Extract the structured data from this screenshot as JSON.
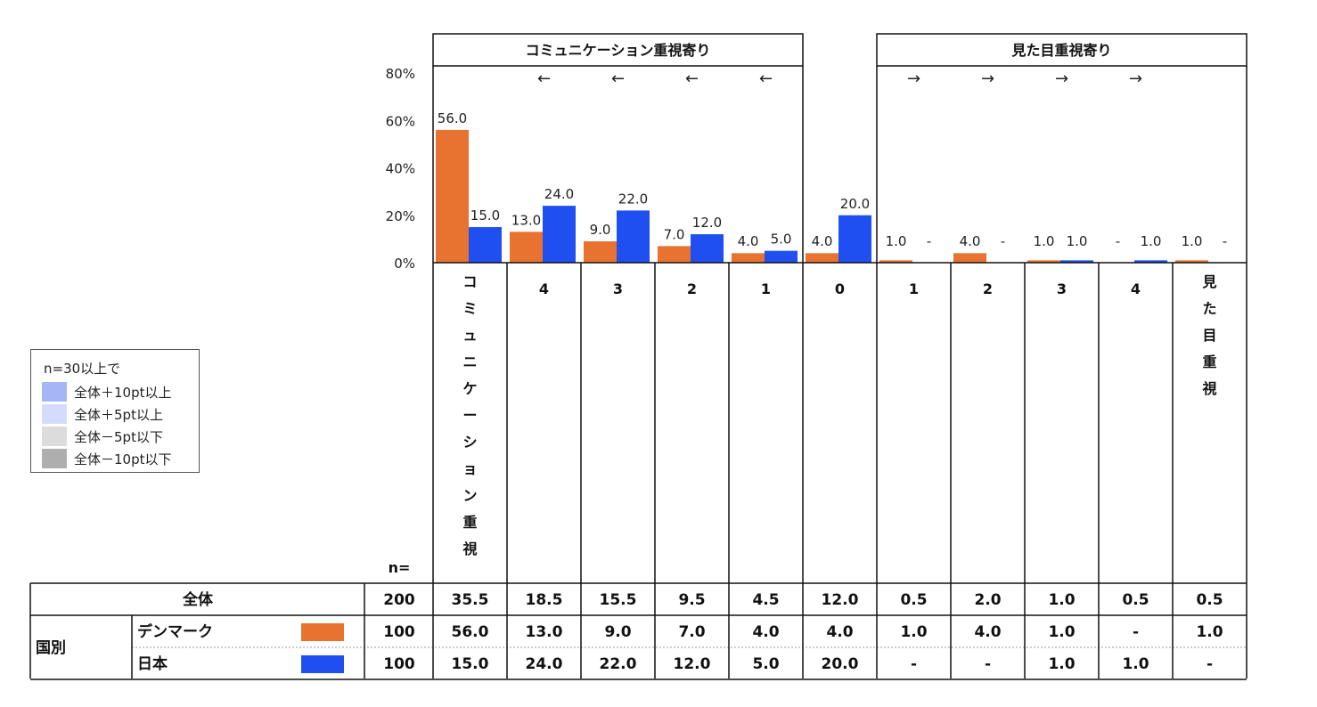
{
  "chart_data": {
    "type": "bar",
    "group_headers": [
      "コミュニケーション重視寄り",
      "見た目重視寄り"
    ],
    "y_ticks": [
      "80%",
      "60%",
      "40%",
      "20%",
      "0%"
    ],
    "ylim": [
      0,
      80
    ],
    "categories": [
      "コミュニケーション重視",
      "4",
      "3",
      "2",
      "1",
      "0",
      "1",
      "2",
      "3",
      "4",
      "見た目重視"
    ],
    "arrows": [
      "",
      "←",
      "←",
      "←",
      "←",
      "",
      "→",
      "→",
      "→",
      "→",
      ""
    ],
    "series": [
      {
        "name": "デンマーク",
        "color": "#e8722f",
        "values": [
          56.0,
          13.0,
          9.0,
          7.0,
          4.0,
          4.0,
          1.0,
          4.0,
          1.0,
          null,
          1.0
        ]
      },
      {
        "name": "日本",
        "color": "#1f4ff0",
        "values": [
          15.0,
          24.0,
          22.0,
          12.0,
          5.0,
          20.0,
          null,
          null,
          1.0,
          1.0,
          null
        ]
      }
    ],
    "data_labels": [
      [
        "56.0",
        "13.0",
        "9.0",
        "7.0",
        "4.0",
        "4.0",
        "1.0",
        "4.0",
        "1.0",
        "-",
        "1.0"
      ],
      [
        "15.0",
        "24.0",
        "22.0",
        "12.0",
        "5.0",
        "20.0",
        "-",
        "-",
        "1.0",
        "1.0",
        "-"
      ]
    ]
  },
  "table": {
    "n_header": "n=",
    "rows": [
      {
        "group": "",
        "label": "全体",
        "n": "200",
        "values": [
          "35.5",
          "18.5",
          "15.5",
          "9.5",
          "4.5",
          "12.0",
          "0.5",
          "2.0",
          "1.0",
          "0.5",
          "0.5"
        ]
      },
      {
        "group": "国別",
        "label": "デンマーク",
        "n": "100",
        "values": [
          "56.0",
          "13.0",
          "9.0",
          "7.0",
          "4.0",
          "4.0",
          "1.0",
          "4.0",
          "1.0",
          "-",
          "1.0"
        ]
      },
      {
        "group": "",
        "label": "日本",
        "n": "100",
        "values": [
          "15.0",
          "24.0",
          "22.0",
          "12.0",
          "5.0",
          "20.0",
          "-",
          "-",
          "1.0",
          "1.0",
          "-"
        ]
      }
    ]
  },
  "legend": {
    "title": "n=30以上で",
    "items": [
      {
        "label": "全体＋10pt以上",
        "color": "#a4b6f5"
      },
      {
        "label": "全体＋5pt以上",
        "color": "#d3dcfb"
      },
      {
        "label": "全体－5pt以下",
        "color": "#dcdcdc"
      },
      {
        "label": "全体－10pt以下",
        "color": "#aeaeae"
      }
    ]
  }
}
